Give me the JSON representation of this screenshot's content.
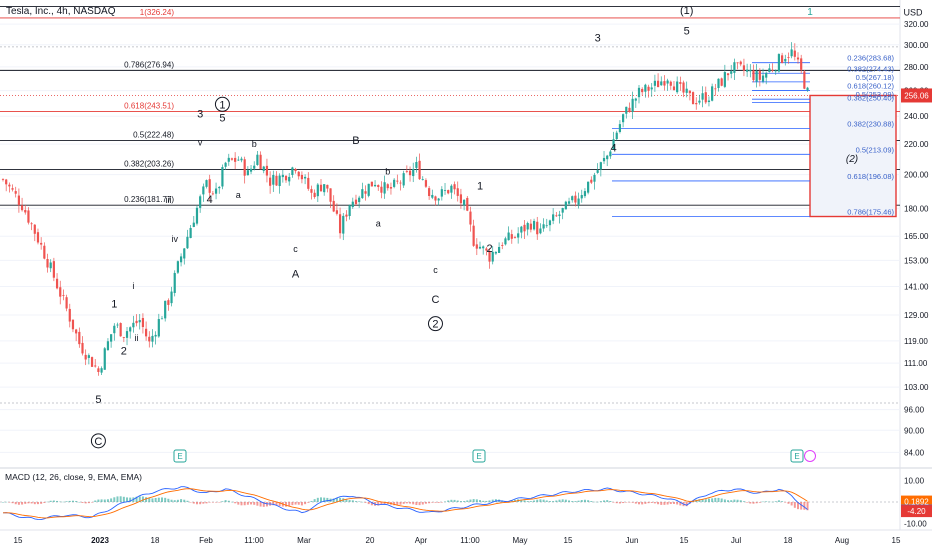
{
  "header": {
    "title": "Tesla, Inc., 4h, NASDAQ",
    "currency": "USD",
    "current_price_label": "256.06"
  },
  "colors": {
    "up": "#26a69a",
    "down": "#ef5350",
    "level_red": "#e53935",
    "level_black": "#131722",
    "fib_blue": "#2962ff",
    "fib_blue_text": "#3a62c9",
    "box_border": "#e53935",
    "box_fill": "#f0f3fa",
    "macd_line": "#2962ff",
    "signal_line": "#ff6d00",
    "ext_label": "#26a69a"
  },
  "chart_data": [
    {
      "type": "candlestick",
      "title": "Tesla, Inc., 4h, NASDAQ",
      "ylim": [
        80,
        345
      ],
      "x_tick_labels": [
        "15",
        "2023",
        "18",
        "Feb",
        "11:00",
        "Mar",
        "20",
        "Apr",
        "11:00",
        "May",
        "15",
        "Jun",
        "15",
        "Jul",
        "18",
        "Aug",
        "15"
      ],
      "y_tick_labels": [
        "84.00",
        "90.00",
        "96.00",
        "103.00",
        "111.00",
        "119.00",
        "129.00",
        "141.00",
        "153.00",
        "165.00",
        "180.00",
        "200.00",
        "220.00",
        "240.00",
        "260.00",
        "280.00",
        "300.00",
        "320.00"
      ],
      "price_path_approx": [
        {
          "i": 0,
          "v": 197
        },
        {
          "i": 6,
          "v": 182
        },
        {
          "i": 12,
          "v": 160
        },
        {
          "i": 18,
          "v": 138
        },
        {
          "i": 24,
          "v": 118
        },
        {
          "i": 30,
          "v": 108
        },
        {
          "i": 35,
          "v": 125
        },
        {
          "i": 38,
          "v": 122
        },
        {
          "i": 43,
          "v": 127
        },
        {
          "i": 46,
          "v": 118
        },
        {
          "i": 52,
          "v": 135
        },
        {
          "i": 58,
          "v": 165
        },
        {
          "i": 62,
          "v": 185
        },
        {
          "i": 64,
          "v": 194
        },
        {
          "i": 67,
          "v": 188
        },
        {
          "i": 70,
          "v": 207
        },
        {
          "i": 74,
          "v": 210
        },
        {
          "i": 77,
          "v": 200
        },
        {
          "i": 80,
          "v": 212
        },
        {
          "i": 84,
          "v": 196
        },
        {
          "i": 88,
          "v": 199
        },
        {
          "i": 92,
          "v": 206
        },
        {
          "i": 97,
          "v": 188
        },
        {
          "i": 101,
          "v": 195
        },
        {
          "i": 106,
          "v": 168
        },
        {
          "i": 109,
          "v": 183
        },
        {
          "i": 113,
          "v": 190
        },
        {
          "i": 117,
          "v": 196
        },
        {
          "i": 121,
          "v": 190
        },
        {
          "i": 126,
          "v": 197
        },
        {
          "i": 130,
          "v": 205
        },
        {
          "i": 134,
          "v": 190
        },
        {
          "i": 137,
          "v": 187
        },
        {
          "i": 141,
          "v": 192
        },
        {
          "i": 145,
          "v": 181
        },
        {
          "i": 148,
          "v": 163
        },
        {
          "i": 153,
          "v": 155
        },
        {
          "i": 157,
          "v": 162
        },
        {
          "i": 161,
          "v": 165
        },
        {
          "i": 166,
          "v": 172
        },
        {
          "i": 169,
          "v": 167
        },
        {
          "i": 174,
          "v": 175
        },
        {
          "i": 180,
          "v": 185
        },
        {
          "i": 185,
          "v": 197
        },
        {
          "i": 190,
          "v": 212
        },
        {
          "i": 195,
          "v": 240
        },
        {
          "i": 200,
          "v": 258
        },
        {
          "i": 205,
          "v": 264
        },
        {
          "i": 209,
          "v": 272
        },
        {
          "i": 213,
          "v": 260
        },
        {
          "i": 217,
          "v": 252
        },
        {
          "i": 222,
          "v": 256
        },
        {
          "i": 226,
          "v": 268
        },
        {
          "i": 229,
          "v": 279
        },
        {
          "i": 234,
          "v": 276
        },
        {
          "i": 238,
          "v": 270
        },
        {
          "i": 242,
          "v": 280
        },
        {
          "i": 246,
          "v": 291
        },
        {
          "i": 248,
          "v": 293
        },
        {
          "i": 251,
          "v": 275
        },
        {
          "i": 253,
          "v": 258
        }
      ],
      "levels": [
        {
          "label": "1(326.24)",
          "value": 326.24,
          "style": "red"
        },
        {
          "label": "0.786(276.94)",
          "value": 276.94,
          "style": "black"
        },
        {
          "label": "0.618(243.51)",
          "value": 243.51,
          "style": "red"
        },
        {
          "label": "0.5(222.48)",
          "value": 222.48,
          "style": "black"
        },
        {
          "label": "0.382(203.26)",
          "value": 203.26,
          "style": "black"
        },
        {
          "label": "0.236(181.77)",
          "value": 181.77,
          "style": "black"
        }
      ],
      "fib_retracement": [
        {
          "label": "0.236(283.68)",
          "value": 283.68
        },
        {
          "label": "0.382(274.43)",
          "value": 274.43
        },
        {
          "label": "0.5(267.18)",
          "value": 267.18
        },
        {
          "label": "0.618(260.12)",
          "value": 260.12
        },
        {
          "label": "0.5(253.09)",
          "value": 253.09
        },
        {
          "label": "0.382(250.40)",
          "value": 250.4
        },
        {
          "label": "0.382(230.88)",
          "value": 230.88
        },
        {
          "label": "0.5(213.09)",
          "value": 213.09
        },
        {
          "label": "0.618(196.08)",
          "value": 196.08
        },
        {
          "label": "0.786(175.46)",
          "value": 175.46
        }
      ],
      "projection_box": {
        "label": "(2)",
        "top_value": 256.06,
        "bottom_value": 175.46
      },
      "wave_labels": [
        {
          "text": "5",
          "i": 30,
          "v": 98
        },
        {
          "text": "C",
          "i": 30,
          "v": 86,
          "circle": true
        },
        {
          "text": "1",
          "i": 35,
          "v": 132
        },
        {
          "text": "2",
          "i": 38,
          "v": 114
        },
        {
          "text": "i",
          "i": 41,
          "v": 140
        },
        {
          "text": "ii",
          "i": 42,
          "v": 119
        },
        {
          "text": "iii",
          "i": 52,
          "v": 183
        },
        {
          "text": "iv",
          "i": 54,
          "v": 162
        },
        {
          "text": "3",
          "i": 62,
          "v": 239
        },
        {
          "text": "v",
          "i": 62,
          "v": 219
        },
        {
          "text": "4",
          "i": 65,
          "v": 183
        },
        {
          "text": "5",
          "i": 69,
          "v": 236
        },
        {
          "text": "1",
          "i": 69,
          "v": 246,
          "circle": true
        },
        {
          "text": "a",
          "i": 74,
          "v": 186
        },
        {
          "text": "b",
          "i": 79,
          "v": 218
        },
        {
          "text": "c",
          "i": 92,
          "v": 157
        },
        {
          "text": "A",
          "i": 92,
          "v": 145
        },
        {
          "text": "B",
          "i": 111,
          "v": 220
        },
        {
          "text": "b",
          "i": 121,
          "v": 200
        },
        {
          "text": "a",
          "i": 118,
          "v": 170
        },
        {
          "text": "c",
          "i": 136,
          "v": 147
        },
        {
          "text": "C",
          "i": 136,
          "v": 134
        },
        {
          "text": "2",
          "i": 136,
          "v": 124,
          "circle": true
        },
        {
          "text": "1",
          "i": 150,
          "v": 191
        },
        {
          "text": "2",
          "i": 153,
          "v": 157
        },
        {
          "text": "3",
          "i": 187,
          "v": 303
        },
        {
          "text": "4",
          "i": 192,
          "v": 215
        },
        {
          "text": "(1)",
          "i": 215,
          "v": 330
        },
        {
          "text": "5",
          "i": 215,
          "v": 310
        }
      ],
      "top_marker": {
        "text": "1"
      },
      "event_markers": [
        "E",
        "E",
        "E"
      ]
    },
    {
      "type": "line",
      "title": "MACD (12, 26, close, 9, EMA, EMA)",
      "ylim": [
        -12,
        12
      ],
      "y_tick_labels": [
        "10.00",
        "-10.00"
      ],
      "value_badges": [
        {
          "label": "0.1892",
          "value": 0.1892,
          "color": "#ff6d00"
        },
        {
          "label": "-4.01",
          "value": -4.01,
          "color": "#2962ff"
        },
        {
          "label": "-4.20",
          "value": -4.2,
          "color": "#e53935"
        }
      ],
      "macd_path_approx": [
        {
          "i": 0,
          "v": -5
        },
        {
          "i": 10,
          "v": -8
        },
        {
          "i": 20,
          "v": -6
        },
        {
          "i": 28,
          "v": -7
        },
        {
          "i": 34,
          "v": -3
        },
        {
          "i": 40,
          "v": 1
        },
        {
          "i": 48,
          "v": 5
        },
        {
          "i": 56,
          "v": 7
        },
        {
          "i": 64,
          "v": 4
        },
        {
          "i": 70,
          "v": 6
        },
        {
          "i": 78,
          "v": 2
        },
        {
          "i": 86,
          "v": -2
        },
        {
          "i": 94,
          "v": -5
        },
        {
          "i": 102,
          "v": 1
        },
        {
          "i": 110,
          "v": 3
        },
        {
          "i": 118,
          "v": -1
        },
        {
          "i": 126,
          "v": -3
        },
        {
          "i": 134,
          "v": -5
        },
        {
          "i": 142,
          "v": -3
        },
        {
          "i": 150,
          "v": -1
        },
        {
          "i": 160,
          "v": 1
        },
        {
          "i": 170,
          "v": 3
        },
        {
          "i": 180,
          "v": 5
        },
        {
          "i": 190,
          "v": 6
        },
        {
          "i": 200,
          "v": 4
        },
        {
          "i": 208,
          "v": 2
        },
        {
          "i": 215,
          "v": -1
        },
        {
          "i": 222,
          "v": 4
        },
        {
          "i": 230,
          "v": 6
        },
        {
          "i": 238,
          "v": 4
        },
        {
          "i": 244,
          "v": 6
        },
        {
          "i": 248,
          "v": 3
        },
        {
          "i": 253,
          "v": -4
        }
      ]
    }
  ]
}
